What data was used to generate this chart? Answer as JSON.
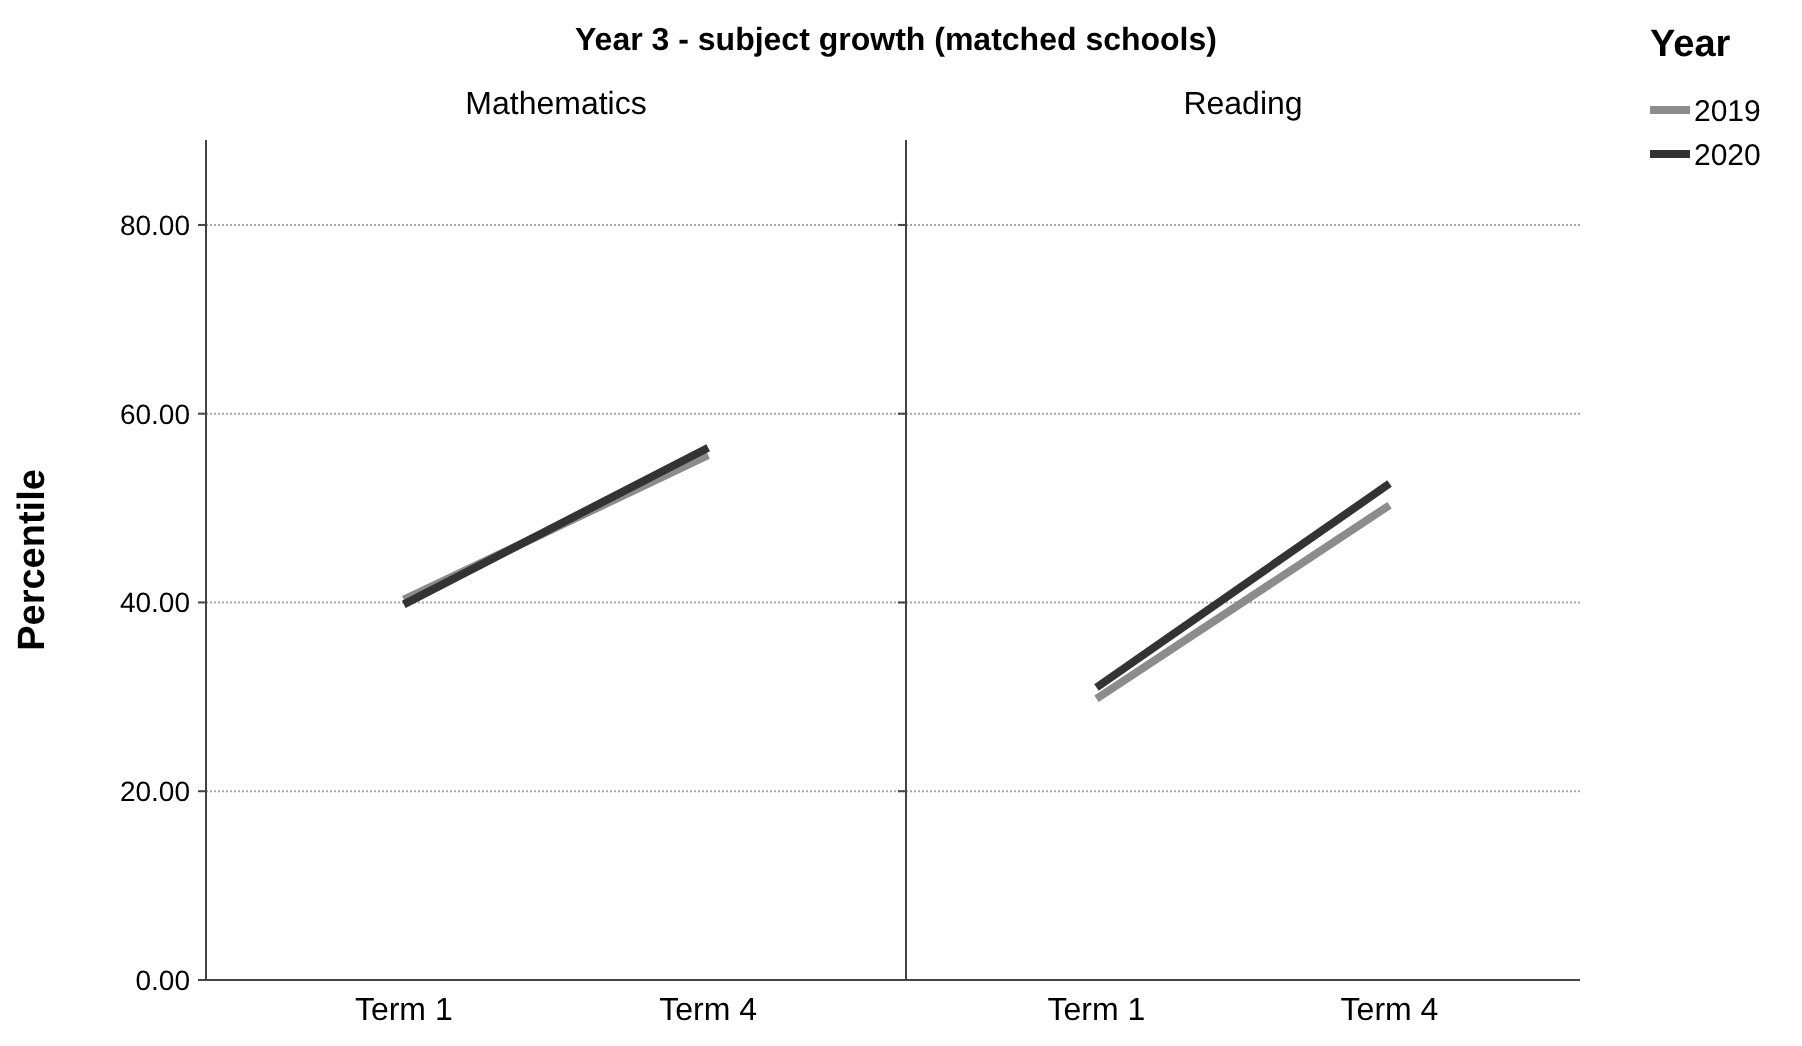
{
  "chart_data": [
    {
      "type": "line",
      "title": "Year 3 - subject growth (matched schools)",
      "subtitle": "Mathematics",
      "ylabel": "Percentile",
      "categories": [
        "Term 1",
        "Term 4"
      ],
      "ylim": [
        0,
        89
      ],
      "yticks": [
        {
          "value": 0,
          "label": "0.00"
        },
        {
          "value": 20,
          "label": "20.00"
        },
        {
          "value": 40,
          "label": "40.00"
        },
        {
          "value": 60,
          "label": "60.00"
        },
        {
          "value": 80,
          "label": "80.00"
        }
      ],
      "grid": "y",
      "legend": false,
      "series": [
        {
          "color": "#8c8c8c",
          "values": [
            40.3,
            55.6
          ]
        },
        {
          "color": "#333333",
          "values": [
            39.8,
            56.4
          ]
        }
      ]
    },
    {
      "type": "line",
      "subtitle": "Reading",
      "categories": [
        "Term 1",
        "Term 4"
      ],
      "ylim": [
        0,
        89
      ],
      "yticks": [
        {
          "value": 0,
          "label": null
        },
        {
          "value": 20,
          "label": null
        },
        {
          "value": 40,
          "label": null
        },
        {
          "value": 60,
          "label": null
        },
        {
          "value": 80,
          "label": null
        }
      ],
      "grid": "y",
      "legend": "right",
      "legend_title": "Year",
      "tick_labels": "x",
      "series": [
        {
          "name": "2019",
          "color": "#8c8c8c",
          "values": [
            29.8,
            50.3
          ]
        },
        {
          "name": "2020",
          "color": "#333333",
          "values": [
            31.0,
            52.6
          ]
        }
      ]
    }
  ]
}
